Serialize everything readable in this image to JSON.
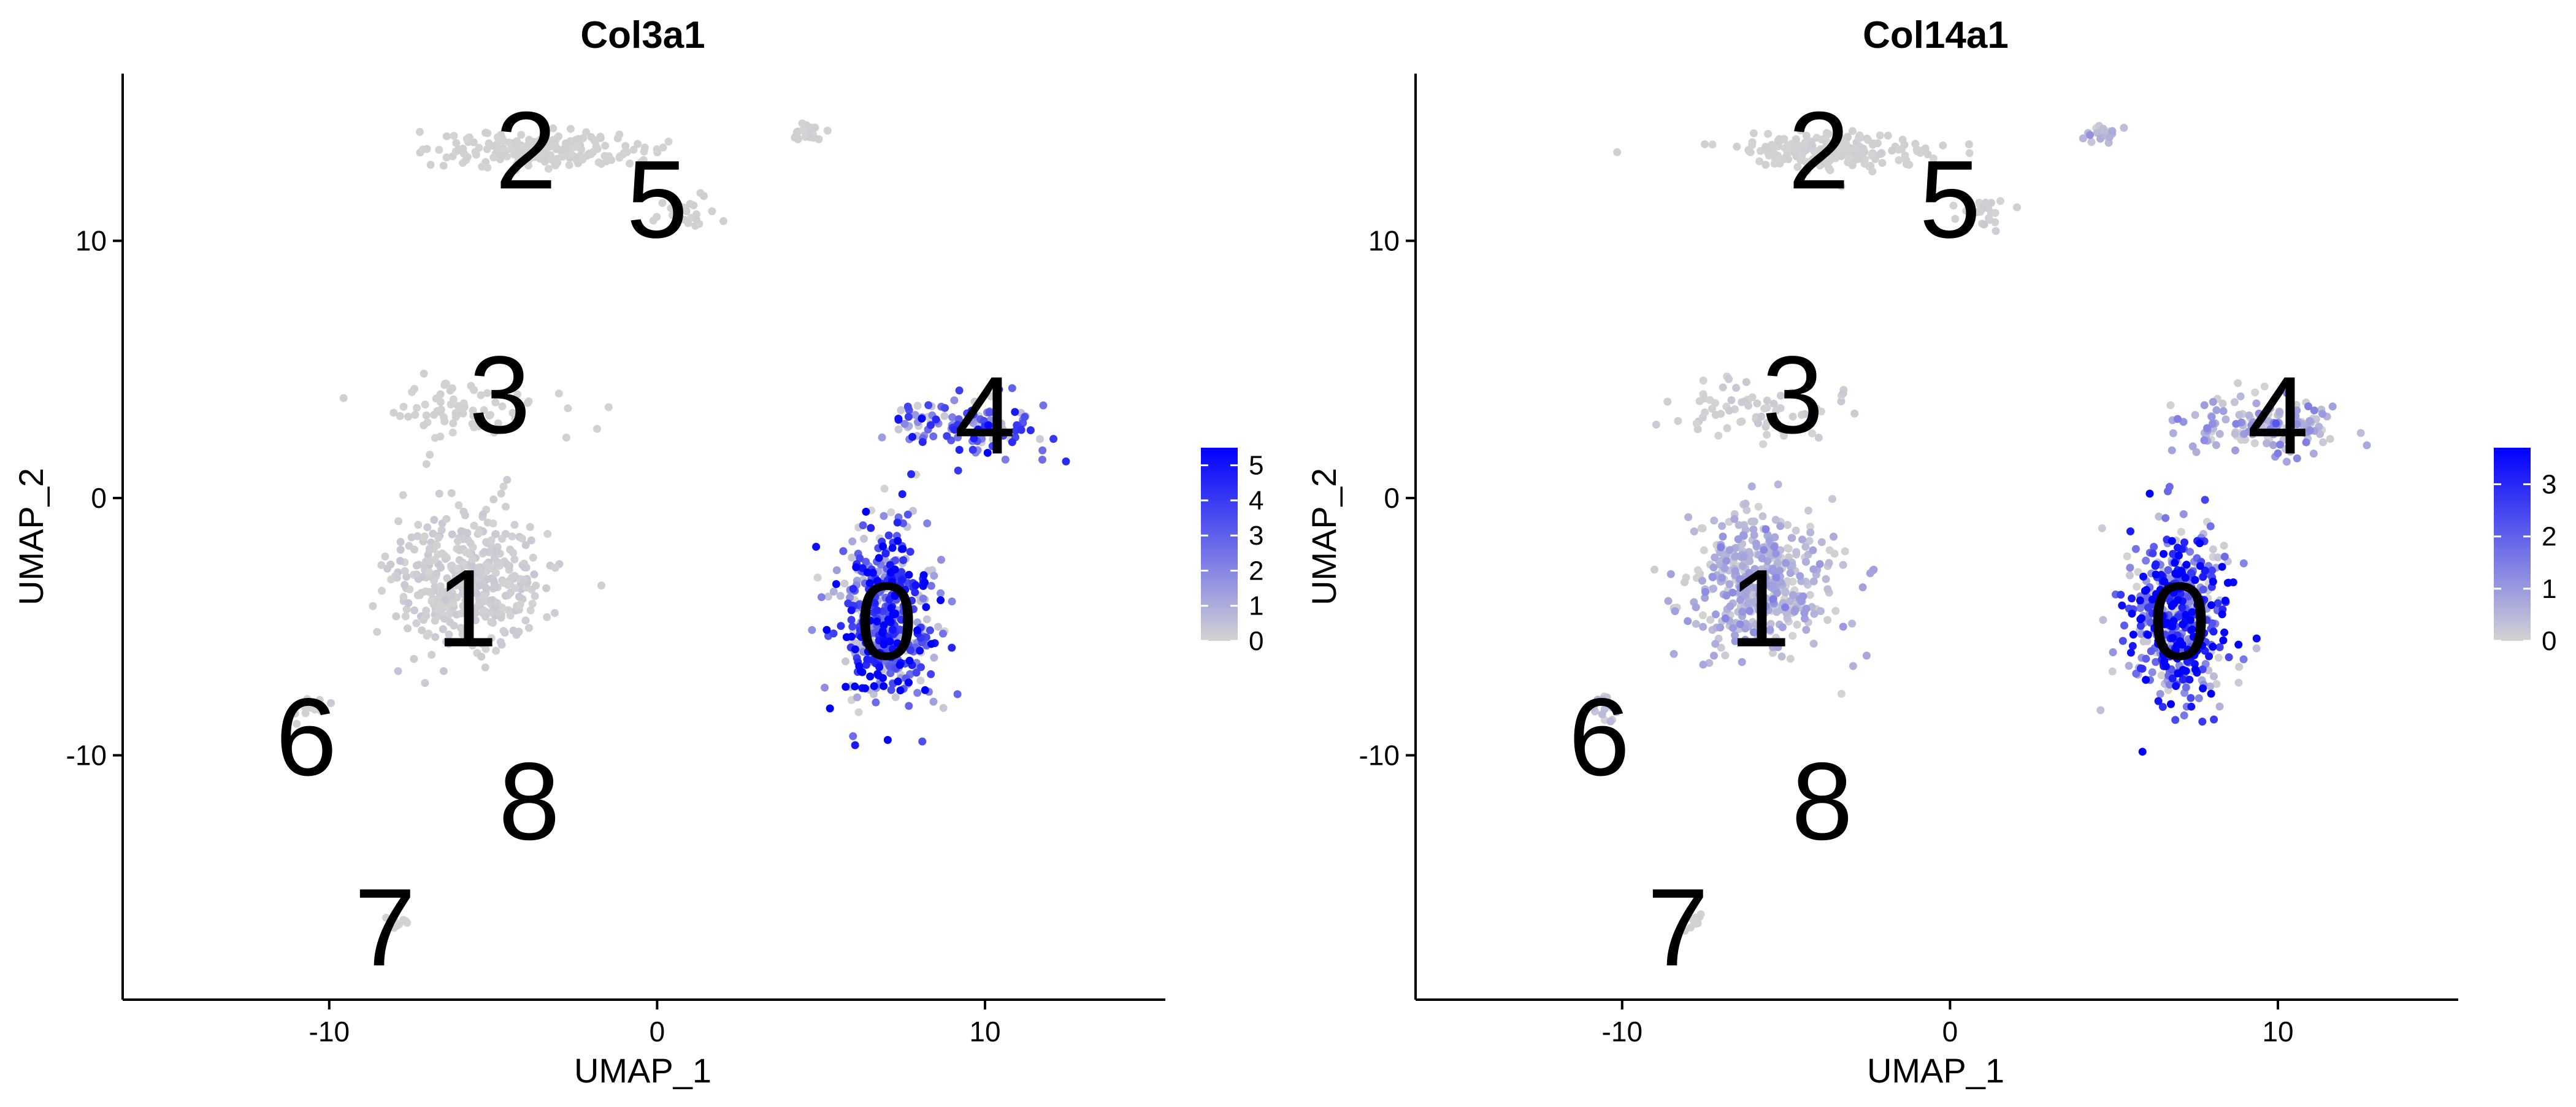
{
  "palette": {
    "low": "#d3d3d3",
    "high": "#0000ff"
  },
  "chart_data": [
    {
      "type": "scatter",
      "title": "Col3a1",
      "xlabel": "UMAP_1",
      "ylabel": "UMAP_2",
      "xlim": [
        -16.3,
        15.5
      ],
      "ylim": [
        -19.5,
        16.5
      ],
      "xticks": [
        -10,
        0,
        10
      ],
      "yticks": [
        -10,
        0,
        10
      ],
      "grid": false,
      "legend": "right",
      "colorbar": {
        "min": 0,
        "max": 5.5,
        "ticks": [
          0,
          1,
          2,
          3,
          4,
          5
        ]
      },
      "cluster_labels": [
        {
          "label": "0",
          "x": 7.0,
          "y": -4.8
        },
        {
          "label": "1",
          "x": -5.8,
          "y": -4.3
        },
        {
          "label": "2",
          "x": -4.0,
          "y": 13.5
        },
        {
          "label": "3",
          "x": -4.8,
          "y": 4.0
        },
        {
          "label": "4",
          "x": 10.0,
          "y": 3.2
        },
        {
          "label": "5",
          "x": 0.0,
          "y": 11.6
        },
        {
          "label": "6",
          "x": -10.7,
          "y": -9.3
        },
        {
          "label": "7",
          "x": -8.3,
          "y": -16.7
        },
        {
          "label": "8",
          "x": -3.9,
          "y": -11.8
        }
      ],
      "clusters": [
        {
          "id": "0",
          "cx": 7.0,
          "cy": -4.6,
          "sx": 1.2,
          "sy": 2.8,
          "n": 520,
          "expr": 3.3
        },
        {
          "id": "1",
          "cx": -5.8,
          "cy": -3.2,
          "sx": 1.9,
          "sy": 2.3,
          "n": 420,
          "expr": 0.15
        },
        {
          "id": "2",
          "cx": -3.5,
          "cy": 13.5,
          "sx": 2.5,
          "sy": 0.6,
          "n": 200,
          "expr": 0.05
        },
        {
          "id": "3",
          "cx": -6.0,
          "cy": 3.5,
          "sx": 2.2,
          "sy": 1.0,
          "n": 70,
          "expr": 0.05
        },
        {
          "id": "4",
          "cx": 9.5,
          "cy": 2.8,
          "sx": 2.0,
          "sy": 1.0,
          "n": 140,
          "expr": 2.6
        },
        {
          "id": "5",
          "cx": 1.0,
          "cy": 11.0,
          "sx": 0.8,
          "sy": 0.5,
          "n": 25,
          "expr": 0.05
        },
        {
          "id": "6",
          "cx": -10.6,
          "cy": -8.2,
          "sx": 0.5,
          "sy": 0.4,
          "n": 15,
          "expr": 0.1
        },
        {
          "id": "7",
          "cx": -7.8,
          "cy": -16.5,
          "sx": 0.3,
          "sy": 0.3,
          "n": 10,
          "expr": 0.05
        },
        {
          "id": "iso",
          "cx": 4.5,
          "cy": 14.2,
          "sx": 0.5,
          "sy": 0.3,
          "n": 20,
          "expr": 0.1
        }
      ]
    },
    {
      "type": "scatter",
      "title": "Col14a1",
      "xlabel": "UMAP_1",
      "ylabel": "UMAP_2",
      "xlim": [
        -16.3,
        15.5
      ],
      "ylim": [
        -19.5,
        16.5
      ],
      "xticks": [
        -10,
        0,
        10
      ],
      "yticks": [
        -10,
        0,
        10
      ],
      "grid": false,
      "legend": "right",
      "colorbar": {
        "min": 0,
        "max": 3.7,
        "ticks": [
          0,
          1,
          2,
          3
        ]
      },
      "cluster_labels": [
        {
          "label": "0",
          "x": 7.0,
          "y": -4.8
        },
        {
          "label": "1",
          "x": -5.8,
          "y": -4.3
        },
        {
          "label": "2",
          "x": -4.0,
          "y": 13.5
        },
        {
          "label": "3",
          "x": -4.8,
          "y": 4.0
        },
        {
          "label": "4",
          "x": 10.0,
          "y": 3.2
        },
        {
          "label": "5",
          "x": 0.0,
          "y": 11.6
        },
        {
          "label": "6",
          "x": -10.7,
          "y": -9.3
        },
        {
          "label": "7",
          "x": -8.3,
          "y": -16.7
        },
        {
          "label": "8",
          "x": -3.9,
          "y": -11.8
        }
      ],
      "clusters": [
        {
          "id": "0",
          "cx": 7.0,
          "cy": -4.6,
          "sx": 1.2,
          "sy": 2.8,
          "n": 520,
          "expr": 2.3
        },
        {
          "id": "1",
          "cx": -5.8,
          "cy": -3.2,
          "sx": 1.9,
          "sy": 2.3,
          "n": 420,
          "expr": 0.6
        },
        {
          "id": "2",
          "cx": -3.5,
          "cy": 13.5,
          "sx": 2.5,
          "sy": 0.6,
          "n": 200,
          "expr": 0.05
        },
        {
          "id": "3",
          "cx": -6.0,
          "cy": 3.5,
          "sx": 2.2,
          "sy": 1.0,
          "n": 70,
          "expr": 0.1
        },
        {
          "id": "4",
          "cx": 9.5,
          "cy": 2.8,
          "sx": 2.0,
          "sy": 1.0,
          "n": 140,
          "expr": 0.7
        },
        {
          "id": "5",
          "cx": 1.0,
          "cy": 11.0,
          "sx": 0.8,
          "sy": 0.5,
          "n": 25,
          "expr": 0.1
        },
        {
          "id": "6",
          "cx": -10.6,
          "cy": -8.2,
          "sx": 0.5,
          "sy": 0.4,
          "n": 15,
          "expr": 0.3
        },
        {
          "id": "7",
          "cx": -7.8,
          "cy": -16.5,
          "sx": 0.3,
          "sy": 0.3,
          "n": 10,
          "expr": 0.05
        },
        {
          "id": "iso",
          "cx": 4.5,
          "cy": 14.2,
          "sx": 0.5,
          "sy": 0.3,
          "n": 20,
          "expr": 0.4
        }
      ]
    }
  ]
}
